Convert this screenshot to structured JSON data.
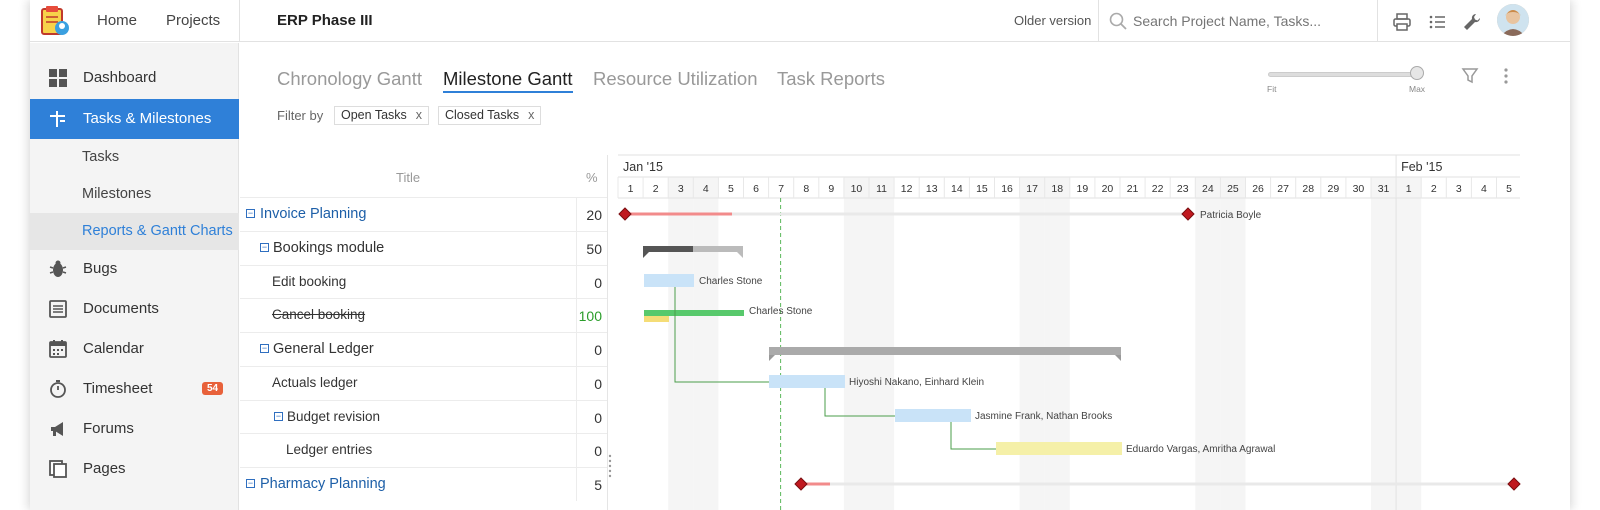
{
  "topbar": {
    "nav": [
      "Home",
      "Projects"
    ],
    "project_title": "ERP Phase III",
    "older_version": "Older version",
    "search_placeholder": "Search Project Name, Tasks..."
  },
  "sidebar": {
    "items": [
      {
        "label": "Dashboard",
        "icon": "grid-icon"
      },
      {
        "label": "Tasks & Milestones",
        "icon": "tasks-icon"
      },
      {
        "label": "Tasks"
      },
      {
        "label": "Milestones"
      },
      {
        "label": "Reports & Gantt Charts"
      },
      {
        "label": "Bugs",
        "icon": "bug-icon"
      },
      {
        "label": "Documents",
        "icon": "document-icon"
      },
      {
        "label": "Calendar",
        "icon": "calendar-icon"
      },
      {
        "label": "Timesheet",
        "icon": "stopwatch-icon",
        "badge": "54"
      },
      {
        "label": "Forums",
        "icon": "megaphone-icon"
      },
      {
        "label": "Pages",
        "icon": "pages-icon"
      }
    ]
  },
  "tabs": [
    "Chronology Gantt",
    "Milestone Gantt",
    "Resource Utilization",
    "Task Reports"
  ],
  "active_tab": "Milestone Gantt",
  "filter": {
    "label": "Filter by",
    "chips": [
      "Open Tasks",
      "Closed Tasks"
    ],
    "remove": "x"
  },
  "zoom": {
    "min_label": "Fit",
    "max_label": "Max",
    "level": 1.0
  },
  "table": {
    "title_header": "Title",
    "pct_header": "%",
    "rows": [
      {
        "title": "Invoice Planning",
        "pct": "20"
      },
      {
        "title": "Bookings module",
        "pct": "50"
      },
      {
        "title": "Edit booking",
        "pct": "0"
      },
      {
        "title": "Cancel booking",
        "pct": "100"
      },
      {
        "title": "General Ledger",
        "pct": "0"
      },
      {
        "title": "Actuals ledger",
        "pct": "0"
      },
      {
        "title": "Budget revision",
        "pct": "0"
      },
      {
        "title": "Ledger entries",
        "pct": "0"
      },
      {
        "title": "Pharmacy Planning",
        "pct": "5"
      }
    ]
  },
  "timeline": {
    "months": [
      "Jan '15",
      "Feb '15"
    ],
    "jan_days": [
      "1",
      "2",
      "3",
      "4",
      "5",
      "6",
      "7",
      "8",
      "9",
      "10",
      "11",
      "12",
      "13",
      "14",
      "15",
      "16",
      "17",
      "18",
      "19",
      "20",
      "21",
      "22",
      "23",
      "24",
      "25",
      "26",
      "27",
      "28",
      "29",
      "30",
      "31"
    ],
    "feb_days": [
      "1",
      "2",
      "3",
      "4",
      "5"
    ]
  },
  "assignees": {
    "invoice": "Patricia Boyle",
    "edit": "Charles Stone",
    "cancel": "Charles Stone",
    "actuals": "Hiyoshi Nakano, Einhard Klein",
    "budget": "Jasmine Frank, Nathan Brooks",
    "ledger": "Eduardo Vargas, Amritha Agrawal"
  },
  "colors": {
    "accent": "#2f80d8",
    "badge": "#e8613a",
    "milestone": "#c0191f",
    "bar_blue": "#c9e3f8",
    "bar_green": "#58c96c",
    "bar_yellow": "#f5f0a8",
    "done_pct": "#2a9d2a"
  }
}
